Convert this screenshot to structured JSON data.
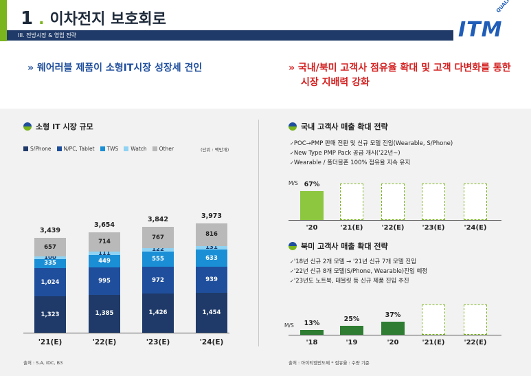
{
  "header": {
    "number": "1",
    "title": "이차전지 보호회로",
    "subtitle": "III. 전방시장 & 영업 전략",
    "logo_text": "ITM",
    "logo_arc": "QUALITY & SOLUTION"
  },
  "headlines": {
    "left": "웨어러블 제품이 소형IT시장 성장세 견인",
    "right_line1": "국내/북미 고객사 점유율 확대 및 고객 다변화를 통한",
    "right_line2": "시장 지배력 강화",
    "arrow": "»"
  },
  "left_chart": {
    "section_title": "소형 IT 시장 규모",
    "unit": "(단위 : 백만개)",
    "source": "출처 : S.A, IDC, B3",
    "legend": [
      {
        "name": "S/Phone",
        "color": "#1f3a68"
      },
      {
        "name": "N/PC, Tablet",
        "color": "#1f4e9c"
      },
      {
        "name": "TWS",
        "color": "#1a8fd6"
      },
      {
        "name": "Watch",
        "color": "#8fd3f4"
      },
      {
        "name": "Other",
        "color": "#b9b9b9"
      }
    ]
  },
  "right_top": {
    "section_title": "국내 고객사 매출 확대 전략",
    "bullets": [
      "POC→PMP 판매 전환 및 신규 모델 진입(Wearable, S/Phone)",
      "New Type PMP Pack 공급 개시('22년~)",
      "Wearable / 폴더블폰 100% 점유율 지속 유지"
    ],
    "ms_label": "M/S"
  },
  "right_bottom": {
    "section_title": "북미 고객사 매출 확대 전략",
    "bullets": [
      "'18년 신규 2개 모델 → '21년 신규 7개 모델 진입",
      "'22년 신규 8개 모델(S/Phone, Wearable)진입 예정",
      "'23년도 노트북, 태블릿 등 신규 제품 진입 추진"
    ],
    "ms_label": "M/S",
    "source": "출처 : 아이티엠반도체   * 점유율 : 수량 기준"
  },
  "chart_data": [
    {
      "type": "bar",
      "stacked": true,
      "title": "소형 IT 시장 규모",
      "ylabel": "(단위 : 백만개)",
      "categories": [
        "'21(E)",
        "'22(E)",
        "'23(E)",
        "'24(E)"
      ],
      "series": [
        {
          "name": "S/Phone",
          "values": [
            1323,
            1385,
            1426,
            1454
          ]
        },
        {
          "name": "N/PC, Tablet",
          "values": [
            1024,
            995,
            972,
            939
          ]
        },
        {
          "name": "TWS",
          "values": [
            335,
            449,
            555,
            633
          ]
        },
        {
          "name": "Watch",
          "values": [
            100,
            111,
            122,
            131
          ]
        },
        {
          "name": "Other",
          "values": [
            657,
            714,
            767,
            816
          ]
        }
      ],
      "totals": [
        "3,439",
        "3,654",
        "3,842",
        "3,973"
      ],
      "labels": [
        [
          "1,323",
          "1,385",
          "1,426",
          "1,454"
        ],
        [
          "1,024",
          "995",
          "972",
          "939"
        ],
        [
          "335",
          "449",
          "555",
          "633"
        ],
        [
          "100",
          "111",
          "122",
          "131"
        ],
        [
          "657",
          "714",
          "767",
          "816"
        ]
      ]
    },
    {
      "type": "bar",
      "title": "국내 고객사 매출 확대 전략",
      "categories": [
        "'20",
        "'21(E)",
        "'22(E)",
        "'23(E)",
        "'24(E)"
      ],
      "values": [
        67,
        null,
        null,
        null,
        null
      ],
      "labels": [
        "67%",
        "",
        "",
        "",
        ""
      ],
      "projected_fill": 0.85
    },
    {
      "type": "bar",
      "title": "북미 고객사 매출 확대 전략",
      "categories": [
        "'18",
        "'19",
        "'20",
        "'21(E)",
        "'22(E)"
      ],
      "values": [
        13,
        25,
        37,
        null,
        null
      ],
      "labels": [
        "13%",
        "25%",
        "37%",
        "",
        ""
      ],
      "projected_fill": 0.85
    }
  ]
}
